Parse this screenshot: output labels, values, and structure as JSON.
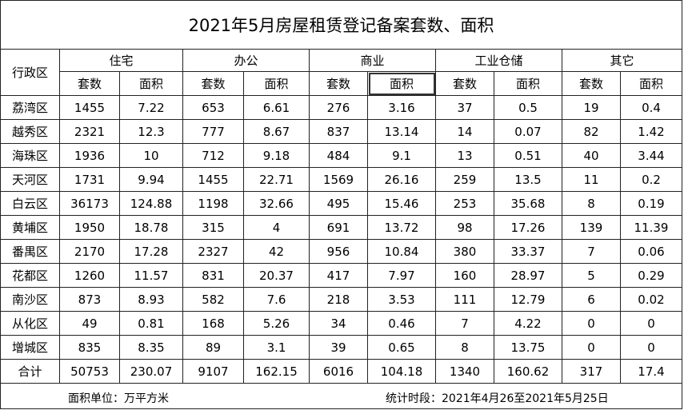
{
  "title": "2021年5月房屋租赁登记备案套数、面积",
  "table": {
    "header_groups": [
      "行政区",
      "住宅",
      "办公",
      "商业",
      "工业仓储",
      "其它"
    ],
    "subheaders": [
      "套数",
      "面积",
      "套数",
      "面积",
      "套数",
      "面积",
      "套数",
      "面积",
      "套数",
      "面积"
    ],
    "rows": [
      [
        "荔湾区",
        1455,
        7.22,
        653,
        6.61,
        276,
        3.16,
        37,
        0.5,
        19,
        0.4
      ],
      [
        "越秀区",
        2321,
        12.3,
        777,
        8.67,
        837,
        13.14,
        14,
        0.07,
        82,
        1.42
      ],
      [
        "海珠区",
        1936,
        10,
        712,
        9.18,
        484,
        9.1,
        13,
        0.51,
        40,
        3.44
      ],
      [
        "天河区",
        1731,
        9.94,
        1455,
        22.71,
        1569,
        26.16,
        259,
        13.5,
        11,
        0.2
      ],
      [
        "白云区",
        36173,
        124.88,
        1198,
        32.66,
        495,
        15.46,
        253,
        35.68,
        8,
        0.19
      ],
      [
        "黄埔区",
        1950,
        18.78,
        315,
        4,
        691,
        13.72,
        98,
        17.26,
        139,
        11.39
      ],
      [
        "番禺区",
        2170,
        17.28,
        2327,
        42,
        956,
        10.84,
        380,
        33.37,
        7,
        0.06
      ],
      [
        "花都区",
        1260,
        11.57,
        831,
        20.37,
        417,
        7.97,
        160,
        28.97,
        5,
        0.29
      ],
      [
        "南沙区",
        873,
        8.93,
        582,
        7.6,
        218,
        3.53,
        111,
        12.79,
        6,
        0.02
      ],
      [
        "从化区",
        49,
        0.81,
        168,
        5.26,
        34,
        0.46,
        7,
        4.22,
        0,
        0
      ],
      [
        "增城区",
        835,
        8.35,
        89,
        3.1,
        39,
        0.65,
        8,
        13.75,
        0,
        0
      ],
      [
        "合计",
        50753,
        230.07,
        9107,
        162.15,
        6016,
        104.18,
        1340,
        160.62,
        317,
        17.4
      ]
    ]
  },
  "footer": {
    "unit": "面积单位：万平方米",
    "period": "统计时段：2021年4月26至2021年5月25日"
  }
}
